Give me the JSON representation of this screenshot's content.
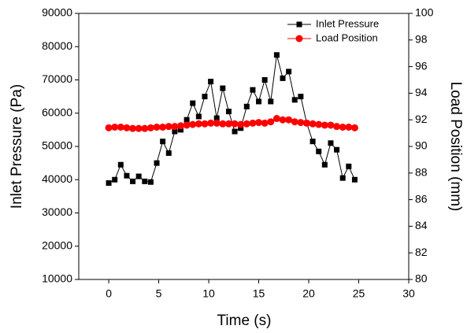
{
  "chart_data": {
    "type": "line",
    "xlabel": "Time (s)",
    "ylabel": "Inlet Pressure (Pa)",
    "y2label": "Load Position (mm)",
    "x": [
      0,
      0.6,
      1.2,
      1.8,
      2.4,
      3.0,
      3.6,
      4.2,
      4.8,
      5.4,
      6.0,
      6.6,
      7.2,
      7.8,
      8.4,
      9.0,
      9.6,
      10.2,
      10.8,
      11.4,
      12.0,
      12.6,
      13.2,
      13.8,
      14.4,
      15.0,
      15.6,
      16.2,
      16.8,
      17.4,
      18.0,
      18.6,
      19.2,
      19.8,
      20.4,
      21.0,
      21.6,
      22.2,
      22.8,
      23.4,
      24.0,
      24.6
    ],
    "series": [
      {
        "name": "Inlet Pressure",
        "color": "#000000",
        "marker": "square",
        "values": [
          39000,
          40000,
          44500,
          41200,
          39500,
          41000,
          39500,
          39300,
          45000,
          51500,
          48000,
          54500,
          55000,
          58000,
          63000,
          59000,
          65000,
          69500,
          58500,
          67500,
          60500,
          54500,
          55500,
          62000,
          67000,
          63500,
          70000,
          63500,
          77500,
          70500,
          72500,
          64000,
          65000,
          57000,
          51500,
          48500,
          44500,
          51000,
          49000,
          40500,
          44000,
          40000
        ]
      },
      {
        "name": "Load Position",
        "color": "#ff0000",
        "marker": "circle",
        "axis": "y2",
        "values": [
          91.4,
          91.45,
          91.45,
          91.4,
          91.35,
          91.35,
          91.35,
          91.4,
          91.45,
          91.45,
          91.5,
          91.5,
          91.55,
          91.6,
          91.65,
          91.7,
          91.7,
          91.75,
          91.75,
          91.7,
          91.7,
          91.7,
          91.65,
          91.7,
          91.75,
          91.8,
          91.75,
          91.85,
          92.1,
          92.0,
          92.0,
          91.85,
          91.8,
          91.75,
          91.7,
          91.65,
          91.6,
          91.6,
          91.5,
          91.45,
          91.45,
          91.4
        ]
      }
    ],
    "xlim": [
      -3,
      30
    ],
    "xticks": [
      0,
      5,
      10,
      15,
      20,
      25,
      30
    ],
    "ylim": [
      10000,
      90000
    ],
    "yticks": [
      10000,
      20000,
      30000,
      40000,
      50000,
      60000,
      70000,
      80000,
      90000
    ],
    "y2lim": [
      80,
      100
    ],
    "y2ticks": [
      80,
      82,
      84,
      86,
      88,
      90,
      92,
      94,
      96,
      98,
      100
    ],
    "legend": "upper right"
  }
}
